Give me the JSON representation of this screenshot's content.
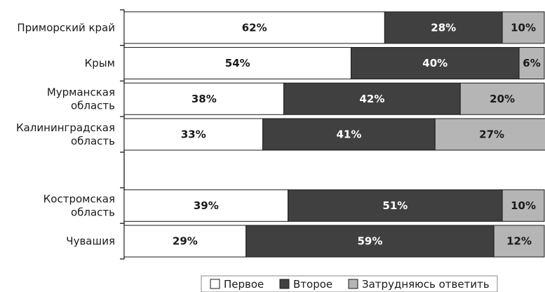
{
  "chart_data": {
    "type": "bar",
    "orientation": "horizontal",
    "stacked": true,
    "percent": true,
    "categories": [
      [
        "Приморский край"
      ],
      [
        "Крым"
      ],
      [
        "Мурманская",
        "область"
      ],
      [
        "Калининградская",
        "область"
      ],
      [],
      [
        "Костромская",
        "область"
      ],
      [
        "Чувашия"
      ]
    ],
    "series": [
      {
        "name": "Первое",
        "color": "#ffffff",
        "label_color": "#1a1a1a",
        "values": [
          62,
          54,
          38,
          33,
          null,
          39,
          29
        ]
      },
      {
        "name": "Второе",
        "color": "#404040",
        "label_color": "#ffffff",
        "values": [
          28,
          40,
          42,
          41,
          null,
          51,
          59
        ]
      },
      {
        "name": "Затрудняюсь ответить",
        "color": "#b5b5b5",
        "label_color": "#1a1a1a",
        "values": [
          10,
          6,
          20,
          27,
          null,
          10,
          12
        ]
      }
    ],
    "value_suffix": "%",
    "xlim": [
      0,
      100
    ],
    "grid": false,
    "legend": "bottom-right"
  }
}
